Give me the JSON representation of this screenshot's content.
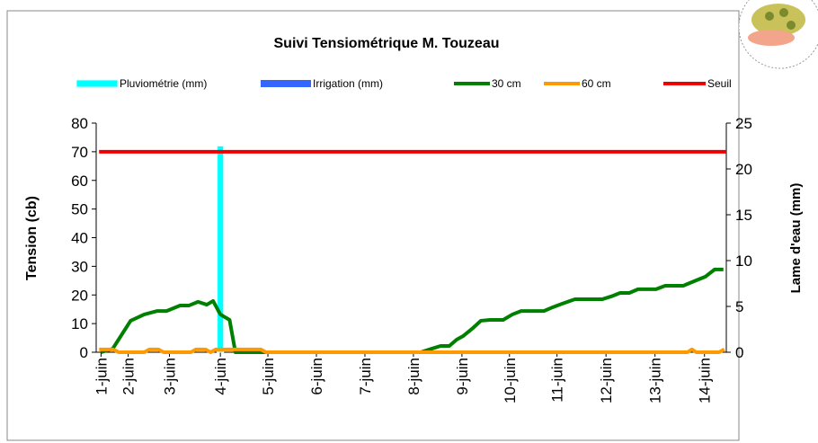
{
  "chart_data": {
    "type": "line",
    "title": "Suivi Tensiométrique M. Touzeau",
    "y_label": "Tension (cb)",
    "y2_label": "Lame d'eau (mm)",
    "xlim": [
      1.44,
      14.43
    ],
    "xticks": [
      {
        "value": 1.54,
        "label": "1-juin"
      },
      {
        "value": 2.1,
        "label": "2-juin"
      },
      {
        "value": 2.95,
        "label": "3-juin"
      },
      {
        "value": 4.0,
        "label": "4-juin"
      },
      {
        "value": 4.98,
        "label": "5-juin"
      },
      {
        "value": 5.98,
        "label": "6-juin"
      },
      {
        "value": 6.98,
        "label": "7-juin"
      },
      {
        "value": 7.98,
        "label": "8-juin"
      },
      {
        "value": 8.98,
        "label": "9-juin"
      },
      {
        "value": 9.96,
        "label": "10-juin"
      },
      {
        "value": 10.94,
        "label": "11-juin"
      },
      {
        "value": 11.95,
        "label": "12-juin"
      },
      {
        "value": 12.96,
        "label": "13-juin"
      },
      {
        "value": 13.98,
        "label": "14-juin"
      }
    ],
    "ylim": [
      0,
      80
    ],
    "yticks": [
      0,
      10,
      20,
      30,
      40,
      50,
      60,
      70,
      80
    ],
    "y2lim": [
      0,
      25
    ],
    "y2ticks": [
      0,
      5,
      10,
      15,
      20,
      25
    ],
    "series": [
      {
        "name": "Pluviométrie (mm)",
        "type": "bar",
        "axis": "y2",
        "color": "#00ffff",
        "x": [
          4.0
        ],
        "values": [
          22.5
        ]
      },
      {
        "name": "Irrigation (mm)",
        "type": "bar",
        "axis": "y2",
        "color": "#3366ff",
        "x": [],
        "values": []
      },
      {
        "name": "30 cm",
        "type": "line",
        "color": "#008000",
        "x": [
          1.54,
          1.78,
          2.15,
          2.43,
          2.7,
          2.89,
          3.17,
          3.35,
          3.54,
          3.72,
          3.85,
          4.0,
          4.19,
          4.31,
          8.13,
          8.35,
          8.54,
          8.72,
          8.87,
          9.0,
          9.19,
          9.37,
          9.56,
          9.83,
          10.02,
          10.2,
          10.67,
          10.85,
          11.04,
          11.31,
          11.87,
          12.06,
          12.24,
          12.43,
          12.61,
          12.98,
          13.17,
          13.54,
          13.81,
          14.0,
          14.19,
          14.37
        ],
        "values": [
          0,
          1.2,
          11,
          13.2,
          14.4,
          14.4,
          16.3,
          16.3,
          17.6,
          16.6,
          17.9,
          13.2,
          11.3,
          0,
          0,
          1.2,
          2.2,
          2.2,
          4.4,
          5.6,
          8.2,
          11,
          11.3,
          11.3,
          13.2,
          14.4,
          14.4,
          15.7,
          16.9,
          18.5,
          18.5,
          19.5,
          20.7,
          20.7,
          22,
          22,
          23.2,
          23.2,
          25.1,
          26.4,
          28.9,
          28.9
        ]
      },
      {
        "name": "60 cm",
        "type": "line",
        "color": "#ff9900",
        "x": [
          1.5,
          1.78,
          1.91,
          2.43,
          2.54,
          2.72,
          2.83,
          3.39,
          3.5,
          3.69,
          3.8,
          3.91,
          4.83,
          4.94,
          13.63,
          13.72,
          13.81,
          14.28,
          14.39
        ],
        "values": [
          1,
          1,
          0,
          0,
          1,
          1,
          0,
          0,
          1,
          1,
          0,
          1,
          1,
          0,
          0,
          1,
          0,
          0,
          1
        ]
      },
      {
        "name": "Seuil",
        "type": "line",
        "color": "#ee0000",
        "x": [
          1.5,
          14.43
        ],
        "values": [
          70,
          70
        ]
      }
    ]
  }
}
